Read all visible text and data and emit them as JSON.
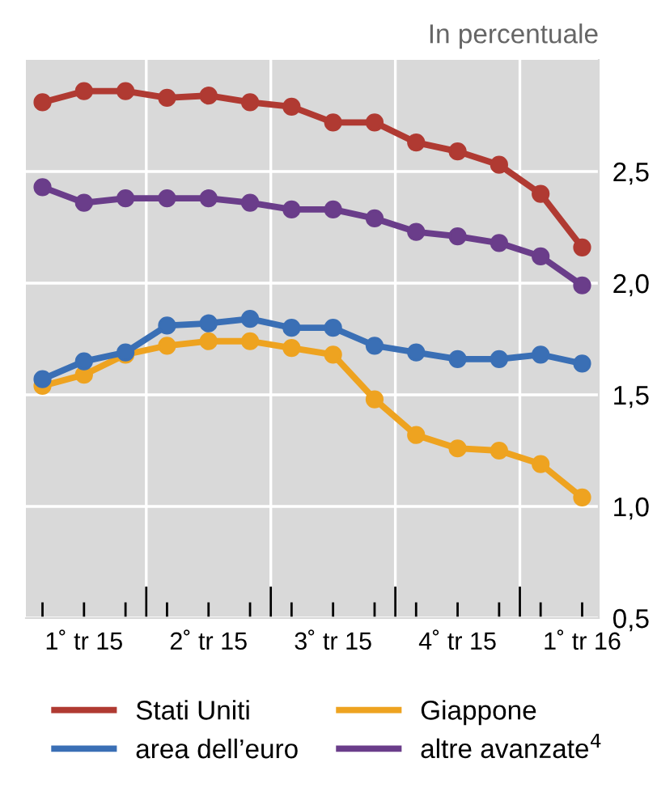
{
  "chart_data": {
    "type": "line",
    "annotations": [
      "In percentuale"
    ],
    "categories": [
      null,
      "1˚ tr 15",
      null,
      null,
      "2˚ tr 15",
      null,
      null,
      "3˚ tr 15",
      null,
      null,
      "4˚ tr 15",
      null,
      null,
      "1˚ tr 16"
    ],
    "ylim": [
      0.5,
      3.0
    ],
    "yticks": [
      {
        "value": 0.5,
        "label": "0,5"
      },
      {
        "value": 1.0,
        "label": "1,0"
      },
      {
        "value": 1.5,
        "label": "1,5"
      },
      {
        "value": 2.0,
        "label": "2,0"
      },
      {
        "value": 2.5,
        "label": "2,5"
      }
    ],
    "grid": true,
    "legend": "bottom",
    "marker": "circle",
    "line_style": "solid",
    "series": [
      {
        "name": "Stati Uniti",
        "color": "#b03a32",
        "values": [
          2.81,
          2.86,
          2.86,
          2.83,
          2.84,
          2.81,
          2.79,
          2.72,
          2.72,
          2.63,
          2.59,
          2.53,
          2.4,
          2.16
        ]
      },
      {
        "name": "area dell’euro",
        "color": "#3a6fb5",
        "values": [
          1.57,
          1.65,
          1.69,
          1.81,
          1.82,
          1.84,
          1.8,
          1.8,
          1.72,
          1.69,
          1.66,
          1.66,
          1.68,
          1.64
        ]
      },
      {
        "name": "Giappone",
        "color": "#eea320",
        "values": [
          1.54,
          1.59,
          1.68,
          1.72,
          1.74,
          1.74,
          1.71,
          1.68,
          1.48,
          1.32,
          1.26,
          1.25,
          1.19,
          1.04
        ]
      },
      {
        "name": "altre avanzate$^{4}$",
        "color": "#6a3d8a",
        "values": [
          2.43,
          2.36,
          2.38,
          2.38,
          2.38,
          2.36,
          2.33,
          2.33,
          2.29,
          2.23,
          2.21,
          2.18,
          2.12,
          1.99
        ]
      }
    ]
  }
}
